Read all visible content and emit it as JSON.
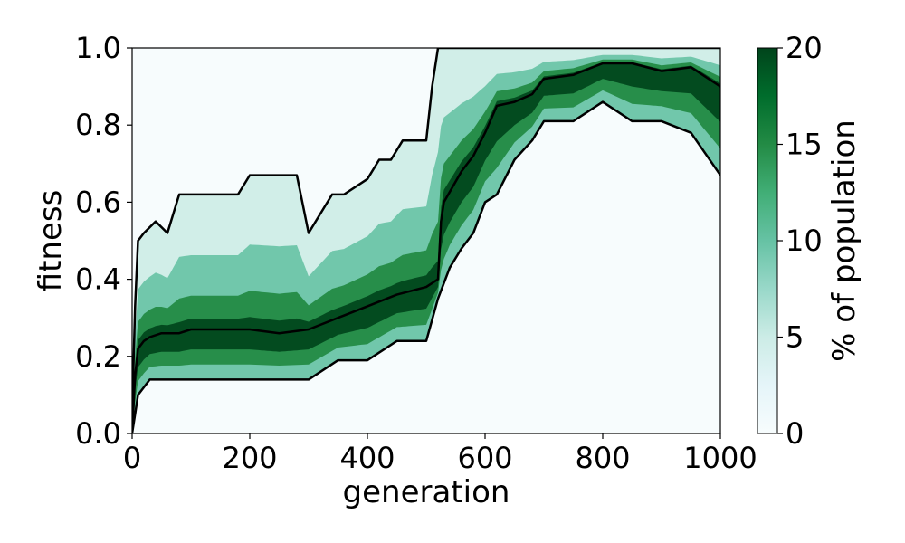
{
  "chart_data": {
    "type": "heatmap",
    "title": "",
    "xlabel": "generation",
    "ylabel": "fitness",
    "xlim": [
      0,
      1000
    ],
    "ylim": [
      0,
      1
    ],
    "x_ticks": [
      "0",
      "200",
      "400",
      "600",
      "800",
      "1000"
    ],
    "y_ticks": [
      "0.0",
      "0.2",
      "0.4",
      "0.6",
      "0.8",
      "1.0"
    ],
    "colorbar": {
      "label": "% of population",
      "range": [
        0,
        20
      ],
      "ticks": [
        "0",
        "5",
        "10",
        "15",
        "20"
      ],
      "colors": [
        "#f7fcfd",
        "#e5f5f9",
        "#ccece6",
        "#99d8c9",
        "#66c2a4",
        "#41ae76",
        "#238b45",
        "#006d2c",
        "#00441b"
      ]
    },
    "grid": false,
    "series": [
      {
        "role": "max",
        "x": [
          0,
          5,
          10,
          20,
          40,
          60,
          80,
          100,
          140,
          180,
          200,
          240,
          280,
          300,
          340,
          360,
          400,
          420,
          440,
          460,
          480,
          500,
          510,
          520,
          530,
          560,
          600,
          650,
          700,
          800,
          900,
          1000
        ],
        "y": [
          0.05,
          0.33,
          0.5,
          0.52,
          0.55,
          0.52,
          0.62,
          0.62,
          0.62,
          0.62,
          0.67,
          0.67,
          0.67,
          0.52,
          0.62,
          0.62,
          0.66,
          0.71,
          0.71,
          0.76,
          0.76,
          0.76,
          0.9,
          1.0,
          1.0,
          1.0,
          1.0,
          1.0,
          1.0,
          1.0,
          1.0,
          1.0
        ]
      },
      {
        "role": "mean",
        "x": [
          0,
          5,
          10,
          20,
          30,
          50,
          80,
          100,
          150,
          200,
          250,
          300,
          350,
          400,
          450,
          500,
          520,
          525,
          530,
          560,
          580,
          600,
          620,
          650,
          680,
          700,
          750,
          800,
          850,
          900,
          950,
          1000
        ],
        "y": [
          0.0,
          0.15,
          0.22,
          0.24,
          0.25,
          0.26,
          0.26,
          0.27,
          0.27,
          0.27,
          0.26,
          0.27,
          0.3,
          0.33,
          0.36,
          0.38,
          0.4,
          0.55,
          0.6,
          0.68,
          0.72,
          0.78,
          0.85,
          0.86,
          0.88,
          0.92,
          0.93,
          0.96,
          0.96,
          0.94,
          0.95,
          0.9
        ]
      },
      {
        "role": "min",
        "x": [
          0,
          5,
          10,
          30,
          60,
          100,
          150,
          200,
          250,
          280,
          300,
          350,
          400,
          450,
          500,
          520,
          540,
          560,
          580,
          600,
          620,
          650,
          680,
          700,
          750,
          800,
          850,
          900,
          950,
          1000
        ],
        "y": [
          0.0,
          0.05,
          0.1,
          0.14,
          0.14,
          0.14,
          0.14,
          0.14,
          0.14,
          0.14,
          0.14,
          0.19,
          0.19,
          0.24,
          0.24,
          0.35,
          0.43,
          0.48,
          0.52,
          0.6,
          0.62,
          0.71,
          0.76,
          0.81,
          0.81,
          0.86,
          0.81,
          0.81,
          0.78,
          0.67
        ]
      }
    ]
  }
}
